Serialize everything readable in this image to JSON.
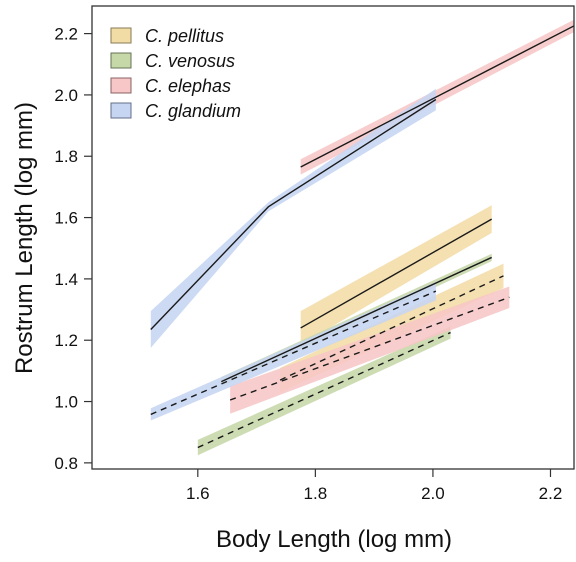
{
  "chart_data": {
    "type": "line",
    "xlabel": "Body Length (log mm)",
    "ylabel": "Rostrum Length (log mm)",
    "xlim": [
      1.42,
      2.24
    ],
    "ylim": [
      0.78,
      2.29
    ],
    "xticks": [
      "1.6",
      "1.8",
      "2.0",
      "2.2"
    ],
    "yticks": [
      "0.8",
      "1.0",
      "1.2",
      "1.4",
      "1.6",
      "1.8",
      "2.0",
      "2.2"
    ],
    "grid": false,
    "legend_position": "top-left",
    "series": [
      {
        "name": "C. pellitus",
        "color": "#f2dca6",
        "edge": "#8a7a55",
        "lines": [
          {
            "style": "solid",
            "x": [
              1.775,
              2.1
            ],
            "y": [
              1.24,
              1.595
            ],
            "band": [
              0.055,
              0.045
            ]
          },
          {
            "style": "dashed",
            "x": [
              1.74,
              2.12
            ],
            "y": [
              1.07,
              1.41
            ],
            "band": [
              0.04,
              0.04
            ]
          }
        ]
      },
      {
        "name": "C. venosus",
        "color": "#c6d7a8",
        "edge": "#667355",
        "lines": [
          {
            "style": "solid",
            "x": [
              1.64,
              2.1
            ],
            "y": [
              1.065,
              1.47
            ],
            "band": [
              0.015,
              0.012
            ]
          },
          {
            "style": "dashed",
            "x": [
              1.6,
              2.03
            ],
            "y": [
              0.85,
              1.225
            ],
            "band": [
              0.025,
              0.02
            ]
          }
        ]
      },
      {
        "name": "C. elephas",
        "color": "#f7c6c6",
        "edge": "#8a6363",
        "lines": [
          {
            "style": "solid",
            "x": [
              1.775,
              2.25
            ],
            "y": [
              1.765,
              2.235
            ],
            "band": [
              0.025,
              0.02
            ]
          },
          {
            "style": "dashed",
            "x": [
              1.655,
              2.13
            ],
            "y": [
              1.005,
              1.34
            ],
            "band": [
              0.045,
              0.035
            ]
          }
        ]
      },
      {
        "name": "C. glandium",
        "color": "#c6d5f2",
        "edge": "#63708a",
        "lines": [
          {
            "style": "solid",
            "x": [
              1.52,
              1.72,
              2.005
            ],
            "y": [
              1.235,
              1.635,
              1.985
            ],
            "band": [
              0.06,
              0.015,
              0.035
            ]
          },
          {
            "style": "dashed",
            "x": [
              1.52,
              2.005
            ],
            "y": [
              0.958,
              1.36
            ],
            "band": [
              0.02,
              0.03
            ]
          }
        ]
      }
    ]
  }
}
